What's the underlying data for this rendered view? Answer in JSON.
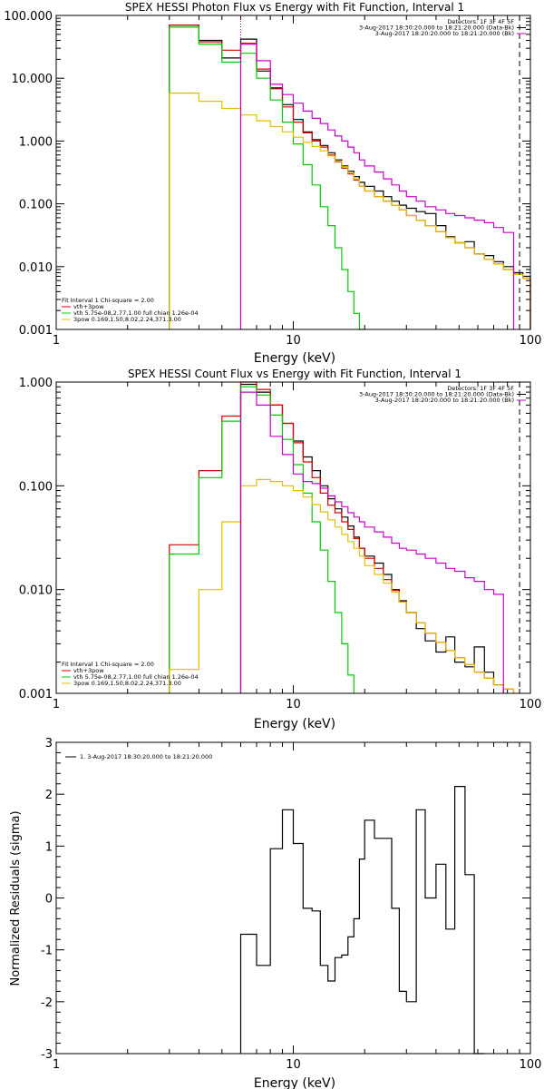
{
  "chart_data": [
    {
      "type": "line",
      "title": "SPEX HESSI Photon Flux vs Energy with Fit Function, Interval 1",
      "xlabel": "Energy (keV)",
      "ylabel": "",
      "xscale": "log",
      "yscale": "log",
      "xlim": [
        1,
        100
      ],
      "ylim": [
        0.001,
        100
      ],
      "xticks": [
        "1",
        "10",
        "100"
      ],
      "yticks": [
        "100.000",
        "10.000",
        "1.000",
        "0.100",
        "0.010",
        "0.001"
      ],
      "vlines": [
        {
          "x": 6,
          "style": "dotted",
          "color": "#b000b0"
        },
        {
          "x": 90,
          "style": "dashed",
          "color": "#000000"
        }
      ],
      "legend_topright": [
        {
          "text": "Detectors: 1F 3F 4F 5F",
          "color": "#000000"
        },
        {
          "text": "3-Aug-2017 18:30:20.000 to 18:21:20.000 (Data-Bk)",
          "color": "#000000"
        },
        {
          "text": "3-Aug-2017 18:20:20.000 to 18:21:20.000 (Bk)",
          "color": "#cc00cc"
        }
      ],
      "legend_bottomleft": [
        {
          "text": "Fit Interval 1    Chi-square = 2.00",
          "color": "#000000"
        },
        {
          "text": "vth+3pow",
          "color": "#dd0000"
        },
        {
          "text": "vth 5.75e-08,2.77,1.00  full chian 1.26e-04",
          "color": "#00cc00"
        },
        {
          "text": "3pow 0.169,1.50,8.02,2.24,371.3.00",
          "color": "#e0c000"
        }
      ],
      "edges": [
        3,
        4,
        5,
        6,
        7,
        8,
        9,
        10,
        11,
        12,
        13,
        14,
        15,
        16,
        17,
        18,
        19,
        20,
        22,
        24,
        26,
        28,
        30,
        33,
        36,
        40,
        44,
        48,
        53,
        58,
        64,
        70,
        77,
        85,
        93,
        100
      ],
      "series": [
        {
          "key": "data",
          "color": "#000000",
          "values": [
            70,
            40,
            21,
            42,
            13,
            7.0,
            3.8,
            2.2,
            1.4,
            1.05,
            0.85,
            0.65,
            0.5,
            0.4,
            0.33,
            0.27,
            0.22,
            0.19,
            0.16,
            0.13,
            0.11,
            0.095,
            0.085,
            0.075,
            0.07,
            0.045,
            0.03,
            0.024,
            0.025,
            0.016,
            0.015,
            0.012,
            0.01,
            0.008,
            0.007
          ]
        },
        {
          "key": "vth+3pow",
          "color": "#dd0000",
          "values": [
            70,
            38,
            28,
            36,
            14,
            6.8,
            3.5,
            2.0,
            1.35,
            1.0,
            0.8,
            0.6,
            0.47,
            0.37,
            0.3,
            0.24,
            0.19,
            0.16,
            0.13,
            0.11,
            0.095,
            0.08,
            0.065,
            0.055,
            0.045,
            0.036,
            0.029,
            0.024,
            0.02,
            0.016,
            0.013,
            0.011,
            0.009,
            0.0075,
            0.0065
          ]
        },
        {
          "key": "vth",
          "color": "#00cc00",
          "values": [
            65,
            35,
            18,
            25,
            10,
            4.5,
            2.0,
            0.9,
            0.42,
            0.2,
            0.09,
            0.045,
            0.02,
            0.009,
            0.004,
            0.0018,
            0.0009
          ]
        },
        {
          "key": "3pow",
          "color": "#e0c000",
          "values": [
            5.8,
            4.3,
            3.3,
            2.6,
            2.1,
            1.7,
            1.4,
            1.15,
            0.95,
            0.82,
            0.7,
            0.58,
            0.48,
            0.39,
            0.31,
            0.25,
            0.19,
            0.16,
            0.13,
            0.11,
            0.095,
            0.08,
            0.065,
            0.055,
            0.045,
            0.036,
            0.029,
            0.024,
            0.02,
            0.016,
            0.013,
            0.011,
            0.009,
            0.0075,
            0.0065
          ]
        },
        {
          "key": "bk",
          "color": "#cc00cc",
          "start": 6,
          "values": [
            35,
            19,
            8.0,
            5.5,
            4.0,
            3.0,
            2.3,
            1.9,
            1.5,
            1.2,
            1.0,
            0.8,
            0.65,
            0.5,
            0.4,
            0.32,
            0.25,
            0.2,
            0.16,
            0.13,
            0.11,
            0.09,
            0.08,
            0.07,
            0.065,
            0.06,
            0.055,
            0.05,
            0.042,
            0.035
          ]
        }
      ]
    },
    {
      "type": "line",
      "title": "SPEX HESSI Count Flux vs Energy with Fit Function, Interval 1",
      "xlabel": "Energy (keV)",
      "ylabel": "",
      "xscale": "log",
      "yscale": "log",
      "xlim": [
        1,
        100
      ],
      "ylim": [
        0.001,
        1
      ],
      "xticks": [
        "1",
        "10",
        "100"
      ],
      "yticks": [
        "1.000",
        "0.100",
        "0.010",
        "0.001"
      ],
      "vlines": [
        {
          "x": 6,
          "style": "dotted",
          "color": "#b000b0"
        },
        {
          "x": 90,
          "style": "dashed",
          "color": "#000000"
        }
      ],
      "legend_topright": [
        {
          "text": "Detectors: 1F 3F 4F 5F",
          "color": "#000000"
        },
        {
          "text": "3-Aug-2017 18:30:20.000 to 18:21:20.000 (Data-Bk)",
          "color": "#000000"
        },
        {
          "text": "3-Aug-2017 18:20:20.000 to 18:21:20.000 (Bk)",
          "color": "#cc00cc"
        }
      ],
      "legend_bottomleft": [
        {
          "text": "Fit Interval 1    Chi-square = 2.00",
          "color": "#000000"
        },
        {
          "text": "vth+3pow",
          "color": "#dd0000"
        },
        {
          "text": "vth 5.75e-08,2.77,1.00  full chian 1.26e-04",
          "color": "#00cc00"
        },
        {
          "text": "3pow 0.169,1.50,8.02,2.24,371.3.00",
          "color": "#e0c000"
        }
      ],
      "edges": [
        3,
        4,
        5,
        6,
        7,
        8,
        9,
        10,
        11,
        12,
        13,
        14,
        15,
        16,
        17,
        18,
        19,
        20,
        22,
        24,
        26,
        28,
        30,
        33,
        36,
        40,
        44,
        48,
        53,
        58,
        64,
        70,
        77,
        85,
        93,
        100
      ],
      "series": [
        {
          "key": "data",
          "color": "#000000",
          "start": 6,
          "values": [
            0.95,
            0.8,
            0.6,
            0.4,
            0.27,
            0.19,
            0.14,
            0.1,
            0.075,
            0.06,
            0.05,
            0.041,
            0.032,
            0.025,
            0.021,
            0.018,
            0.014,
            0.01,
            0.0078,
            0.006,
            0.0042,
            0.0032,
            0.0025,
            0.0035,
            0.002,
            0.0018,
            0.0028,
            0.0016,
            0.0012
          ]
        },
        {
          "key": "vth+3pow",
          "color": "#dd0000",
          "values": [
            0.027,
            0.14,
            0.47,
            1.0,
            0.85,
            0.6,
            0.4,
            0.26,
            0.17,
            0.12,
            0.085,
            0.065,
            0.055,
            0.045,
            0.038,
            0.031,
            0.025,
            0.02,
            0.016,
            0.0125,
            0.0098,
            0.0076,
            0.006,
            0.0048,
            0.0038,
            0.0031,
            0.0026,
            0.0022,
            0.0019,
            0.0016,
            0.0014,
            0.0012,
            0.0011
          ]
        },
        {
          "key": "vth",
          "color": "#00cc00",
          "values": [
            0.022,
            0.12,
            0.42,
            0.9,
            0.75,
            0.48,
            0.28,
            0.16,
            0.085,
            0.045,
            0.024,
            0.012,
            0.006,
            0.003,
            0.0015
          ]
        },
        {
          "key": "3pow",
          "color": "#e0c000",
          "values": [
            0.0017,
            0.01,
            0.045,
            0.1,
            0.115,
            0.11,
            0.1,
            0.09,
            0.078,
            0.066,
            0.056,
            0.047,
            0.04,
            0.034,
            0.029,
            0.025,
            0.021,
            0.017,
            0.014,
            0.0115,
            0.0094,
            0.0076,
            0.006,
            0.0048,
            0.0038,
            0.0031,
            0.0026,
            0.0022,
            0.0019,
            0.0016,
            0.0014,
            0.0012,
            0.0011
          ]
        },
        {
          "key": "bk",
          "color": "#cc00cc",
          "start": 6,
          "values": [
            0.8,
            0.6,
            0.3,
            0.2,
            0.13,
            0.11,
            0.105,
            0.095,
            0.08,
            0.07,
            0.063,
            0.055,
            0.05,
            0.045,
            0.04,
            0.036,
            0.032,
            0.028,
            0.025,
            0.024,
            0.022,
            0.02,
            0.018,
            0.016,
            0.015,
            0.013,
            0.012,
            0.01,
            0.009
          ]
        }
      ]
    },
    {
      "type": "line",
      "title": "",
      "xlabel": "Energy (keV)",
      "ylabel": "Normalized Residuals (sigma)",
      "xscale": "log",
      "yscale": "linear",
      "xlim": [
        1,
        100
      ],
      "ylim": [
        -3,
        3
      ],
      "xticks": [
        "1",
        "10",
        "100"
      ],
      "yticks": [
        "3",
        "2",
        "1",
        "0",
        "-1",
        "-2",
        "-3"
      ],
      "legend_topleft": [
        {
          "text": "1.  3-Aug-2017 18:30:20.000 to 18:21:20.000",
          "color": "#000000"
        }
      ],
      "edges": [
        6,
        7,
        8,
        9,
        10,
        11,
        12,
        13,
        14,
        15,
        16,
        17,
        18,
        19,
        20,
        22,
        24,
        26,
        28,
        30,
        33,
        36,
        40,
        44,
        48,
        53,
        58,
        64,
        70,
        77,
        85,
        93
      ],
      "series": [
        {
          "key": "residuals",
          "color": "#000000",
          "values": [
            -0.7,
            -1.3,
            0.95,
            1.7,
            1.05,
            -0.2,
            -0.25,
            -1.3,
            -1.6,
            -1.15,
            -1.1,
            -0.75,
            -0.4,
            0.75,
            1.5,
            1.15,
            1.15,
            -0.2,
            -1.8,
            -2.0,
            1.7,
            0.0,
            0.65,
            -0.6,
            2.15,
            0.45,
            -3.0
          ]
        }
      ]
    }
  ]
}
